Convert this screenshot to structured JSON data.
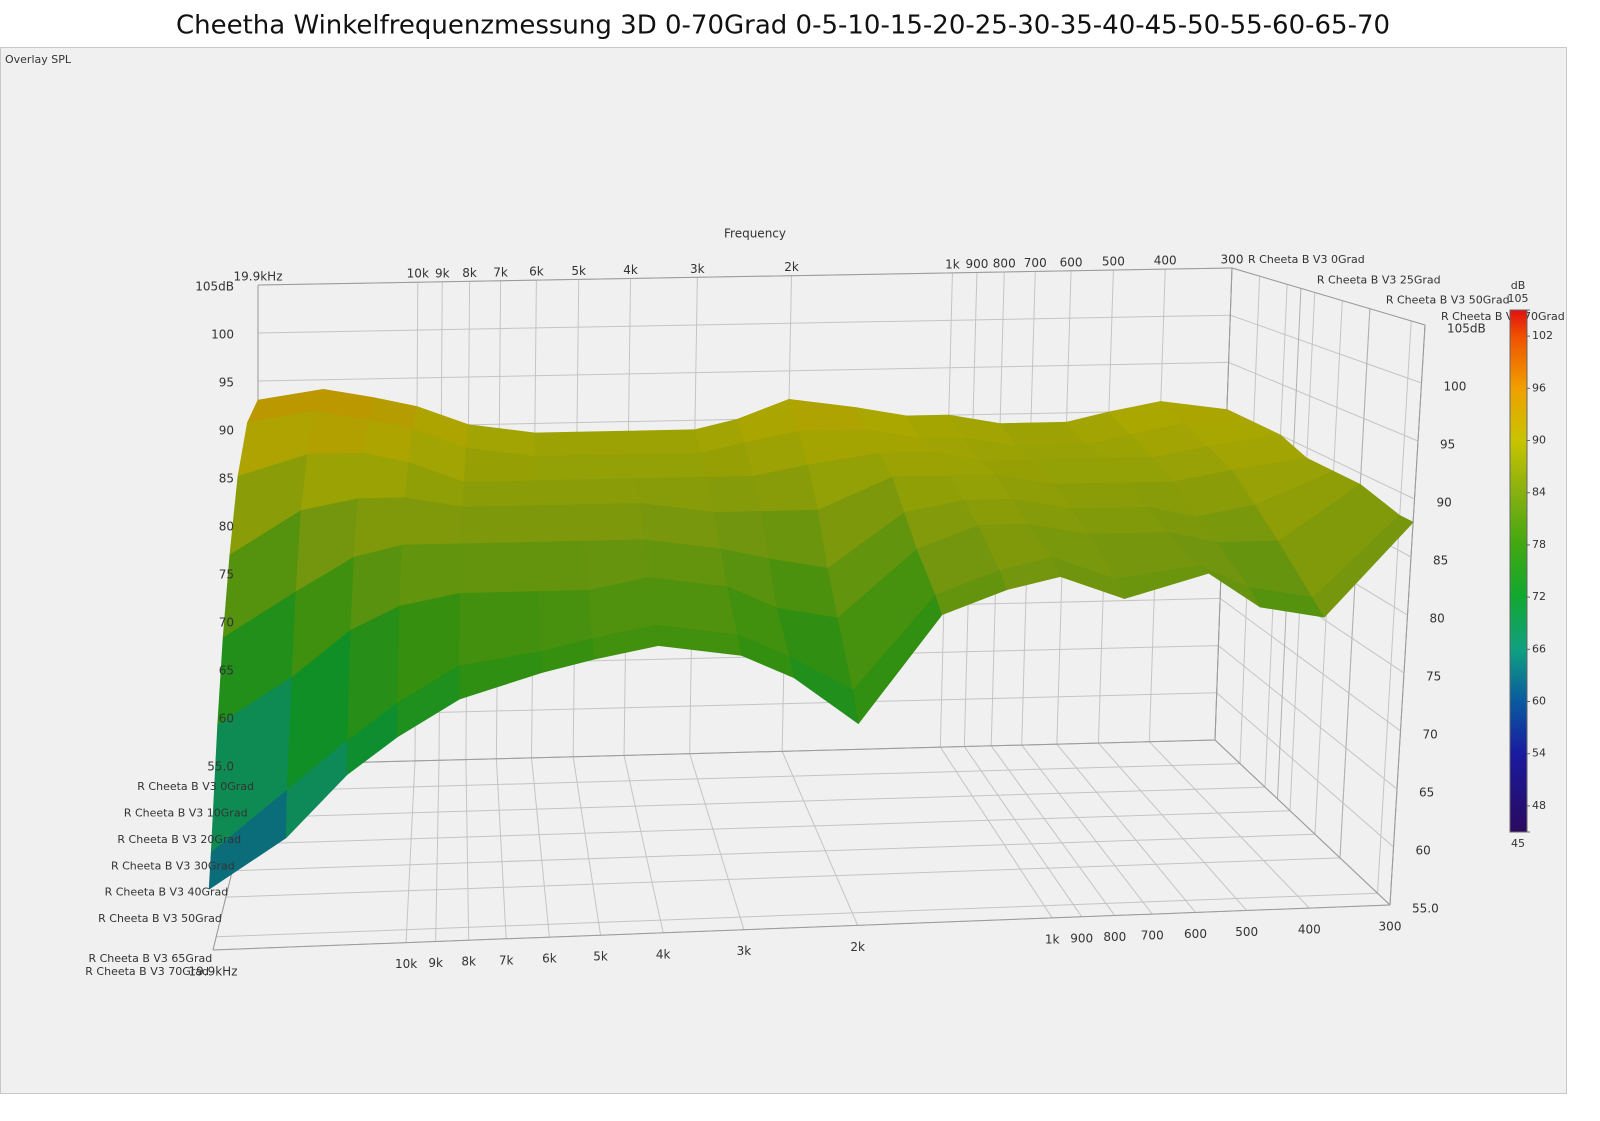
{
  "chart_data": {
    "type": "surface",
    "title": "Cheetha Winkelfrequenzmessung 3D 0-70Grad 0-5-10-15-20-25-30-35-40-45-50-55-60-65-70",
    "panel_label": "Overlay SPL",
    "x_label": "Frequency",
    "x": [
      19900,
      15000,
      12000,
      10000,
      8000,
      6000,
      5000,
      4000,
      3000,
      2500,
      2000,
      1500,
      1200,
      1000,
      800,
      600,
      500,
      400,
      300
    ],
    "xlim": [
      19900,
      300
    ],
    "log_x": true,
    "xticks": [
      {
        "value": 19900,
        "label": "19.9kHz"
      },
      {
        "value": 10000,
        "label": "10k"
      },
      {
        "value": 9000,
        "label": "9k"
      },
      {
        "value": 8000,
        "label": "8k"
      },
      {
        "value": 7000,
        "label": "7k"
      },
      {
        "value": 6000,
        "label": "6k"
      },
      {
        "value": 5000,
        "label": "5k"
      },
      {
        "value": 4000,
        "label": "4k"
      },
      {
        "value": 3000,
        "label": "3k"
      },
      {
        "value": 2000,
        "label": "2k"
      },
      {
        "value": 1000,
        "label": "1k"
      },
      900,
      800,
      700,
      600,
      500,
      400,
      300
    ],
    "ylim": [
      55,
      105
    ],
    "yticks": [
      {
        "value": 105,
        "label": "105dB"
      },
      100,
      95,
      90,
      85,
      80,
      75,
      70,
      65,
      60,
      {
        "value": 55,
        "label": "55.0"
      }
    ],
    "angles": [
      0,
      10,
      20,
      30,
      40,
      50,
      65,
      70
    ],
    "zlim": [
      0,
      70
    ],
    "zticks": [
      {
        "value": 0,
        "label": "R Cheeta B V3 0Grad"
      },
      {
        "value": 25,
        "label": "R Cheeta B V3 25Grad"
      },
      {
        "value": 50,
        "label": "R Cheeta B V3 50Grad"
      },
      {
        "value": 70,
        "label": "R Cheeta B V3 70Grad"
      }
    ],
    "series": [
      {
        "name": "R Cheeta B V3 0Grad",
        "values": [
          93,
          94,
          93,
          92,
          90,
          89,
          89,
          89,
          89,
          90,
          92,
          91,
          90,
          90,
          89,
          89,
          90,
          91,
          90
        ]
      },
      {
        "name": "R Cheeta B V3 10Grad",
        "values": [
          92,
          93,
          92,
          91,
          89,
          88,
          88,
          88,
          88,
          89,
          90,
          90,
          89,
          89,
          88,
          88,
          89,
          90,
          90
        ]
      },
      {
        "name": "R Cheeta B V3 20Grad",
        "values": [
          88,
          90,
          90,
          89,
          87,
          87,
          87,
          87,
          87,
          87,
          88,
          89,
          89,
          88,
          88,
          88,
          88,
          89,
          90
        ]
      },
      {
        "name": "R Cheeta B V3 30Grad",
        "values": [
          82,
          86,
          87,
          87,
          86,
          86,
          86,
          86,
          85,
          85,
          85,
          88,
          88,
          88,
          87,
          87,
          87,
          88,
          89
        ]
      },
      {
        "name": "R Cheeta B V3 40Grad",
        "values": [
          76,
          80,
          83,
          84,
          84,
          84,
          84,
          84,
          83,
          82,
          81,
          86,
          87,
          87,
          86,
          86,
          85,
          86,
          89
        ]
      },
      {
        "name": "R Cheeta B V3 50Grad",
        "values": [
          70,
          74,
          78,
          80,
          81,
          81,
          81,
          82,
          81,
          79,
          78,
          84,
          86,
          86,
          85,
          85,
          84,
          84,
          89
        ]
      },
      {
        "name": "R Cheeta B V3 65Grad",
        "values": [
          62,
          67,
          71,
          74,
          77,
          78,
          79,
          80,
          79,
          77,
          74,
          82,
          84,
          85,
          83,
          84,
          82,
          81,
          88
        ]
      },
      {
        "name": "R Cheeta B V3 70Grad",
        "values": [
          60,
          64,
          69,
          72,
          75,
          77,
          78,
          79,
          78,
          76,
          72,
          81,
          83,
          84,
          82,
          84,
          81,
          80,
          88
        ]
      }
    ],
    "colorbar": {
      "label": "dB",
      "clim": [
        45,
        105
      ],
      "ticks": [
        105,
        102,
        96,
        90,
        84,
        78,
        72,
        66,
        60,
        54,
        48,
        45
      ]
    }
  }
}
